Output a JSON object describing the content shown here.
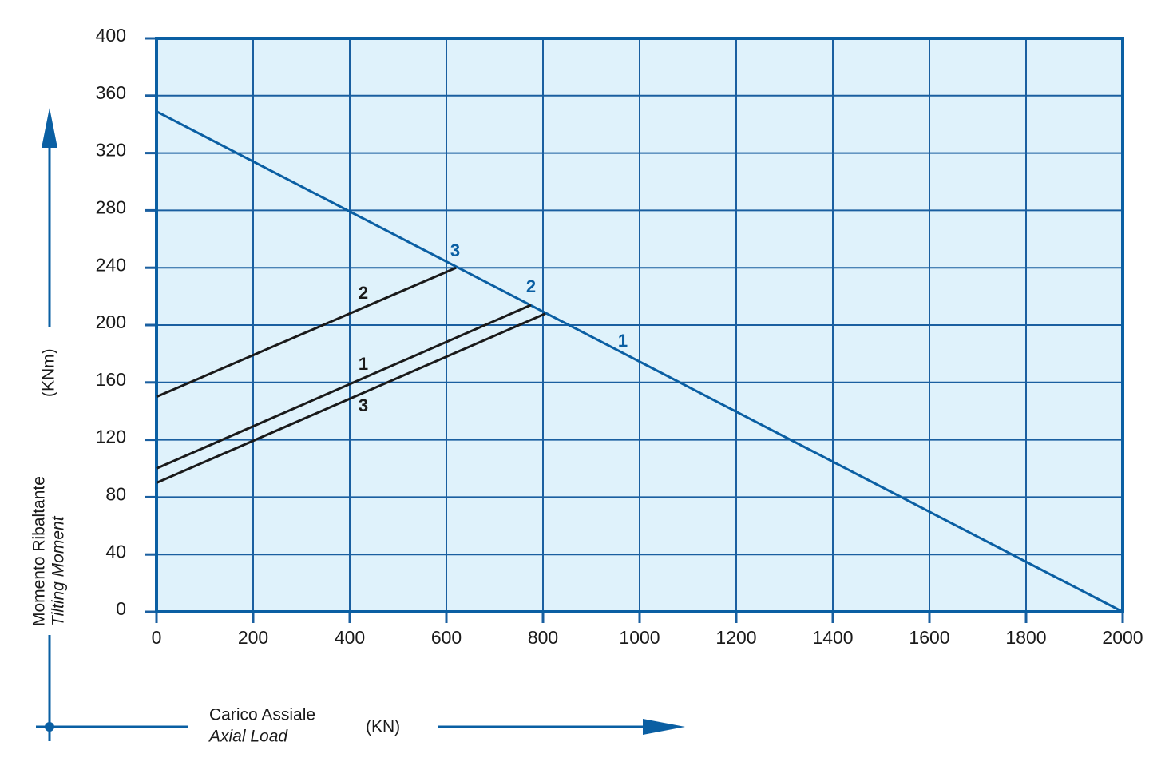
{
  "chart_data": {
    "type": "line",
    "xlabel": [
      "Carico Assiale",
      "Axial Load"
    ],
    "xunit": "(KN)",
    "ylabel": [
      "Momento Ribaltante",
      "Tilting Moment"
    ],
    "yunit": "(KNm)",
    "xlim": [
      0,
      2000
    ],
    "xticks": [
      0,
      200,
      400,
      600,
      800,
      1000,
      1200,
      1400,
      1600,
      1800,
      2000
    ],
    "ylim": [
      0,
      400
    ],
    "yticks": [
      0,
      40,
      80,
      120,
      160,
      200,
      240,
      280,
      320,
      360,
      400
    ],
    "grid": true,
    "background": "#dff2fb",
    "grid_color": "#1a5fa0",
    "series": [
      {
        "name": "1",
        "color": "#0a5fa3",
        "x": [
          0,
          2000
        ],
        "values": [
          349,
          0
        ]
      },
      {
        "name": "2",
        "color": "#1a1a1a",
        "x": [
          0,
          620
        ],
        "values": [
          150,
          240
        ]
      },
      {
        "name": "1",
        "color": "#1a1a1a",
        "x": [
          0,
          775
        ],
        "values": [
          100,
          214
        ]
      },
      {
        "name": "3",
        "color": "#1a1a1a",
        "x": [
          0,
          805
        ],
        "values": [
          90,
          208
        ]
      }
    ],
    "annotations": [
      "3",
      "2"
    ]
  }
}
